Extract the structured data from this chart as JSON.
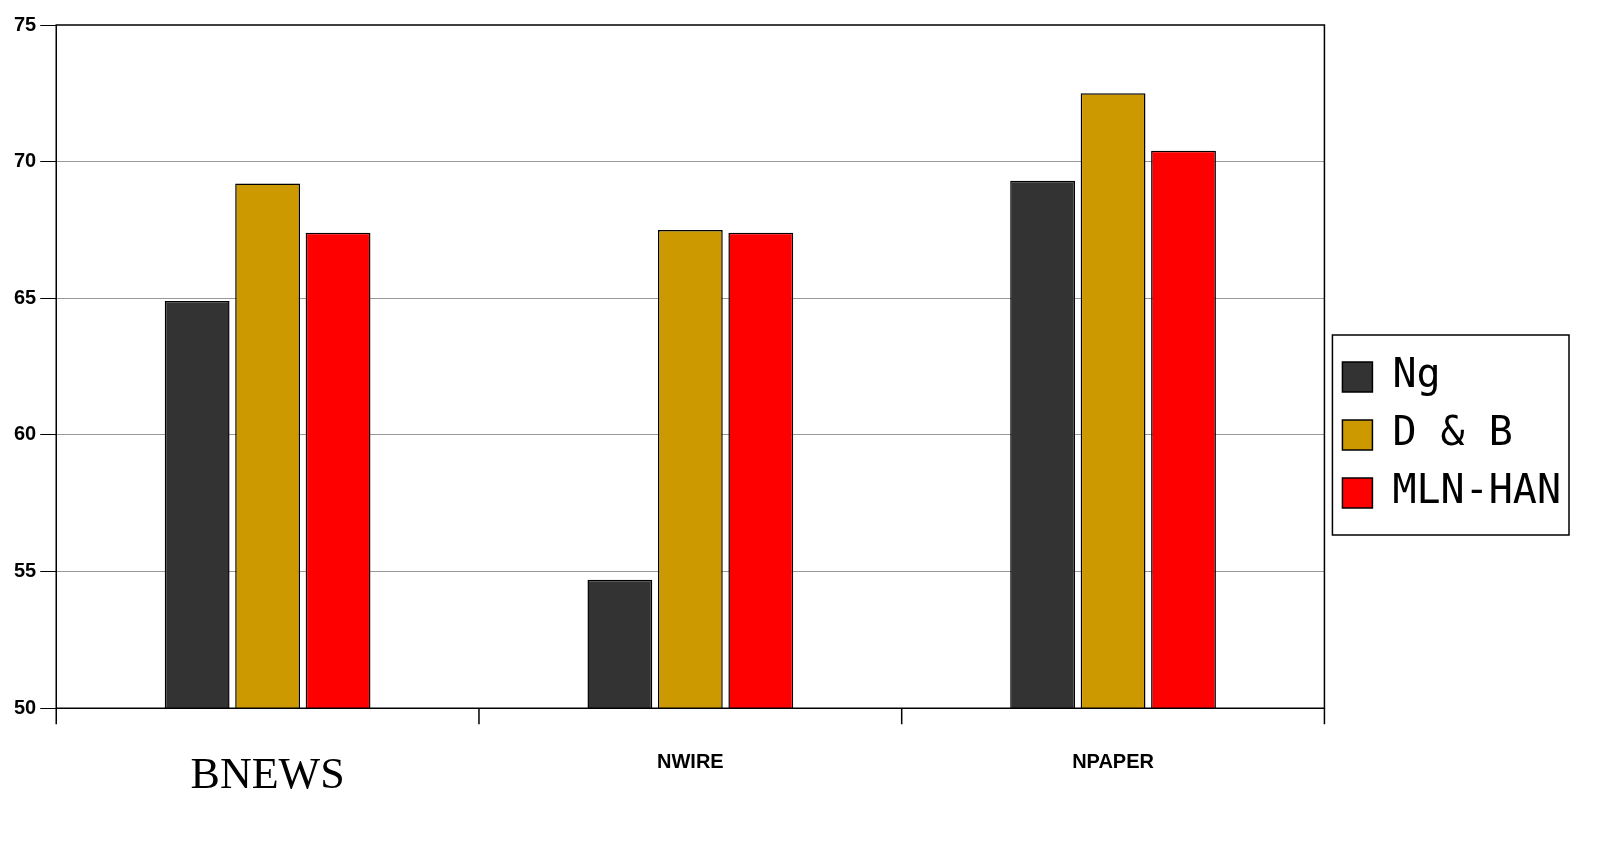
{
  "chart_data": {
    "type": "bar",
    "categories": [
      "BNEWS",
      "NWIRE",
      "NPAPER"
    ],
    "series": [
      {
        "name": "Ng",
        "color": "#333333",
        "values": [
          64.9,
          54.7,
          69.3
        ]
      },
      {
        "name": "D & B",
        "color": "#cc9900",
        "values": [
          69.2,
          67.5,
          72.5
        ]
      },
      {
        "name": "MLN-HAN",
        "color": "#ff0000",
        "values": [
          67.4,
          67.4,
          70.4
        ]
      }
    ],
    "ylim": [
      50,
      75
    ],
    "yticks": [
      50,
      55,
      60,
      65,
      70,
      75
    ],
    "grid": "y",
    "legend": "right"
  }
}
